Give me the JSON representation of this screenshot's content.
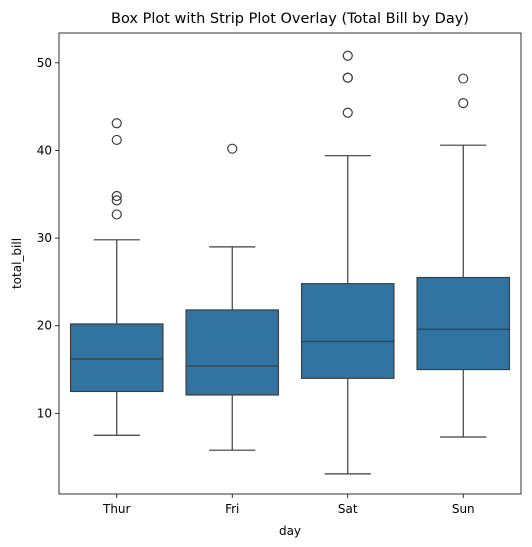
{
  "chart_data": {
    "type": "box",
    "title": "Box Plot with Strip Plot Overlay (Total Bill by Day)",
    "xlabel": "day",
    "ylabel": "total_bill",
    "categories": [
      "Thur",
      "Fri",
      "Sat",
      "Sun"
    ],
    "ylim": [
      0.8,
      53.4
    ],
    "yticks": [
      10,
      20,
      30,
      40,
      50
    ],
    "grid": false,
    "legend": "none",
    "box_color": "#3274a1",
    "line_color": "#3d3d3d",
    "boxes": [
      {
        "category": "Thur",
        "whisker_low": 7.5,
        "q1": 12.5,
        "median": 16.2,
        "q3": 20.2,
        "whisker_high": 29.8,
        "outliers": [
          32.7,
          34.3,
          34.8,
          41.2,
          43.1
        ]
      },
      {
        "category": "Fri",
        "whisker_low": 5.8,
        "q1": 12.1,
        "median": 15.4,
        "q3": 21.8,
        "whisker_high": 29.0,
        "outliers": [
          40.2
        ]
      },
      {
        "category": "Sat",
        "whisker_low": 3.1,
        "q1": 14.0,
        "median": 18.2,
        "q3": 24.8,
        "whisker_high": 39.4,
        "outliers": [
          44.3,
          48.3,
          48.3,
          50.8
        ]
      },
      {
        "category": "Sun",
        "whisker_low": 7.3,
        "q1": 15.0,
        "median": 19.6,
        "q3": 25.5,
        "whisker_high": 40.6,
        "outliers": [
          45.4,
          48.2
        ]
      }
    ]
  }
}
